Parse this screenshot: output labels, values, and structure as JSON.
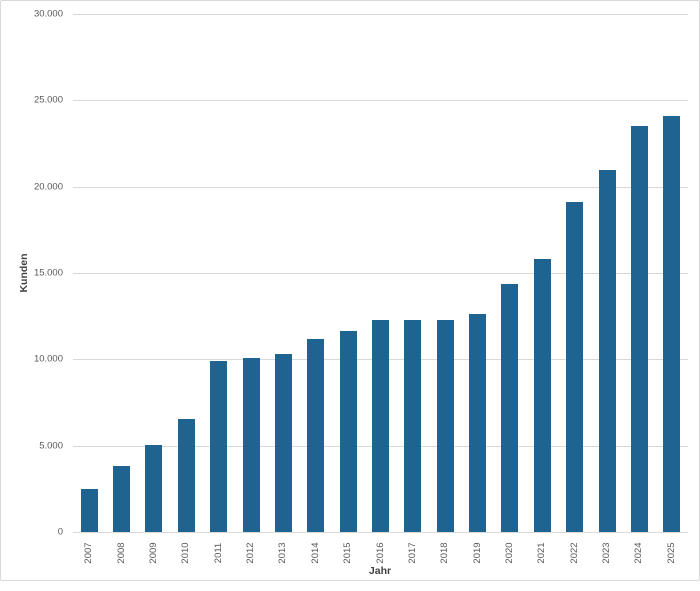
{
  "chart_data": {
    "type": "bar",
    "title": "",
    "xlabel": "Jahr",
    "ylabel": "Kunden",
    "categories": [
      "2007",
      "2008",
      "2009",
      "2010",
      "2011",
      "2012",
      "2013",
      "2014",
      "2015",
      "2016",
      "2017",
      "2018",
      "2019",
      "2020",
      "2021",
      "2022",
      "2023",
      "2024",
      "2025"
    ],
    "values": [
      2500,
      3800,
      5050,
      6550,
      9900,
      10100,
      10300,
      11150,
      11650,
      12250,
      12250,
      12250,
      12650,
      14350,
      15800,
      19100,
      20950,
      23500,
      24100
    ],
    "ylim": [
      0,
      30000
    ],
    "ytick_interval": 5000,
    "ytick_labels": [
      "0",
      "5.000",
      "10.000",
      "15.000",
      "20.000",
      "25.000",
      "30.000"
    ],
    "grid": true,
    "legend": "none",
    "bar_color": "#1f6391",
    "gridline_color": "#d9d9d9",
    "tick_label_color": "#595959",
    "axis_title_color": "#404040",
    "frame_border_color": "#d9d9d9",
    "background_color": "#ffffff"
  }
}
